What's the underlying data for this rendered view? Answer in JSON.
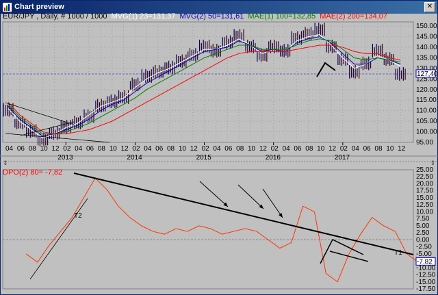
{
  "window": {
    "title": "Chart preview",
    "close_label": "✕"
  },
  "main_chart": {
    "symbol_info": "EUR/JPY , Daily, # 1000 / 1000",
    "indicators": [
      {
        "label": "MVG(1) 23=131,37",
        "color": "#ffffff"
      },
      {
        "label": "MVG(2) 50=131,61",
        "color": "#0000c0"
      },
      {
        "label": "MAE(1) 100=132,85",
        "color": "#008000"
      },
      {
        "label": "MAE(2) 200=134,07",
        "color": "#ff0000"
      }
    ],
    "y_ticks": [
      "150.00",
      "145.00",
      "140.00",
      "135.00",
      "130.00",
      "125.00",
      "120.00",
      "115.00",
      "110.00",
      "105.00",
      "100.00",
      "95.00"
    ],
    "price_marker": "127,40"
  },
  "x_axis": {
    "month_labels": [
      "04",
      "06",
      "08",
      "10",
      "12",
      "02",
      "04",
      "06",
      "08",
      "10",
      "12",
      "02",
      "04",
      "06",
      "08",
      "10",
      "12",
      "02",
      "04",
      "06",
      "08",
      "10",
      "12",
      "02",
      "04",
      "06",
      "08",
      "10",
      "12",
      "02",
      "04",
      "06",
      "08",
      "10",
      "12"
    ],
    "year_labels": [
      "2013",
      "2014",
      "2015",
      "2016",
      "2017"
    ]
  },
  "oscillator": {
    "label": "DPO(2) 80= -7,82",
    "y_ticks": [
      "25.00",
      "22.50",
      "20.00",
      "17.50",
      "15.00",
      "12.50",
      "10.00",
      "7.50",
      "5.00",
      "2.50",
      "0.00",
      "-2.50",
      "-5.00",
      "-7.50",
      "-10.00",
      "-12.50",
      "-15.00",
      "-17.50"
    ],
    "value_marker": "-7.82",
    "annotations": [
      "T2",
      "T1"
    ]
  },
  "chart_data": [
    {
      "type": "line",
      "title": "EUR/JPY , Daily, # 1000 / 1000",
      "ylim": [
        95,
        152
      ],
      "x": [
        "2013-04",
        "2013-05",
        "2013-06",
        "2013-07",
        "2013-08",
        "2013-09",
        "2013-10",
        "2013-11",
        "2013-12",
        "2014-01",
        "2014-02",
        "2014-03",
        "2014-04",
        "2014-05",
        "2014-06",
        "2014-07",
        "2014-08",
        "2014-09",
        "2014-10",
        "2014-11",
        "2014-12",
        "2015-01",
        "2015-02",
        "2015-03",
        "2015-04",
        "2015-05",
        "2015-06",
        "2015-07",
        "2015-08",
        "2015-09",
        "2015-10",
        "2015-11",
        "2015-12",
        "2016-01",
        "2016-02"
      ],
      "series": [
        {
          "name": "EUR/JPY",
          "values": [
            110,
            104,
            100,
            96,
            99,
            102,
            104,
            107,
            112,
            114,
            116,
            122,
            126,
            128,
            130,
            133,
            136,
            140,
            138,
            142,
            145,
            140,
            136,
            140,
            138,
            144,
            146,
            148,
            140,
            134,
            128,
            132,
            138,
            134,
            127
          ]
        },
        {
          "name": "MVG(1) 23",
          "values": [
            111,
            105,
            101,
            97,
            99,
            102,
            104,
            108,
            112,
            114,
            116,
            121,
            125,
            128,
            130,
            133,
            136,
            139,
            139,
            141,
            144,
            141,
            137,
            139,
            138,
            143,
            145,
            146,
            141,
            135,
            130,
            132,
            136,
            134,
            131
          ]
        },
        {
          "name": "MVG(2) 50",
          "values": [
            112,
            106,
            102,
            98,
            99,
            101,
            103,
            106,
            110,
            113,
            115,
            119,
            123,
            126,
            129,
            132,
            135,
            138,
            139,
            140,
            143,
            141,
            138,
            139,
            138,
            142,
            144,
            145,
            142,
            137,
            132,
            132,
            135,
            134,
            132
          ]
        },
        {
          "name": "MAE(1) 100",
          "values": [
            113,
            107,
            103,
            99,
            99,
            100,
            102,
            104,
            107,
            110,
            113,
            116,
            120,
            123,
            126,
            129,
            132,
            135,
            137,
            139,
            141,
            141,
            139,
            139,
            139,
            141,
            143,
            144,
            143,
            139,
            135,
            134,
            135,
            134,
            133
          ]
        },
        {
          "name": "MAE(2) 200",
          "values": [
            114,
            108,
            104,
            100,
            99,
            99,
            100,
            101,
            103,
            105,
            108,
            111,
            114,
            117,
            120,
            123,
            126,
            129,
            132,
            135,
            137,
            138,
            138,
            138,
            138,
            139,
            140,
            141,
            141,
            140,
            138,
            137,
            137,
            135,
            134
          ]
        }
      ]
    },
    {
      "type": "line",
      "title": "DPO(2) 80= -7,82",
      "ylim": [
        -17.5,
        25
      ],
      "x": [
        "2013-04",
        "2013-05",
        "2013-06",
        "2013-07",
        "2013-08",
        "2013-09",
        "2013-10",
        "2013-11",
        "2013-12",
        "2014-01",
        "2014-02",
        "2014-03",
        "2014-04",
        "2014-05",
        "2014-06",
        "2014-07",
        "2014-08",
        "2014-09",
        "2014-10",
        "2014-11",
        "2014-12",
        "2015-01",
        "2015-02",
        "2015-03",
        "2015-04",
        "2015-05",
        "2015-06",
        "2015-07",
        "2015-08",
        "2015-09",
        "2015-10",
        "2015-11",
        "2015-12",
        "2016-01",
        "2016-02"
      ],
      "series": [
        {
          "name": "DPO(2) 80",
          "values": [
            -5,
            -8,
            -2,
            3,
            8,
            15,
            22,
            18,
            12,
            8,
            5,
            3,
            2,
            4,
            3,
            5,
            4,
            2,
            3,
            4,
            3,
            0,
            -3,
            -1,
            12,
            10,
            -12,
            -15,
            -5,
            2,
            8,
            5,
            3,
            -5,
            -8
          ]
        }
      ]
    }
  ]
}
